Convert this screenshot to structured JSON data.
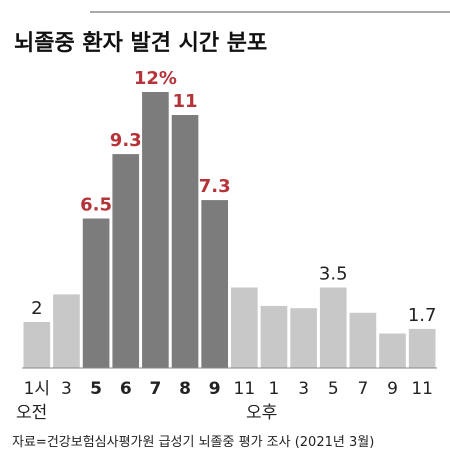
{
  "chart_data": {
    "type": "bar",
    "title": "뇌졸중 환자 발견 시간 분포",
    "categories": [
      "1시",
      "3",
      "5",
      "6",
      "7",
      "8",
      "9",
      "11",
      "1",
      "3",
      "5",
      "7",
      "9",
      "11"
    ],
    "values": [
      2,
      3.2,
      6.5,
      9.3,
      12,
      11,
      7.3,
      3.5,
      2.7,
      2.6,
      3.5,
      2.4,
      1.5,
      1.7
    ],
    "value_labels": [
      "2",
      null,
      "6.5",
      "9.3",
      "12%",
      "11",
      "7.3",
      null,
      null,
      null,
      "3.5",
      null,
      null,
      "1.7"
    ],
    "highlighted": [
      false,
      false,
      true,
      true,
      true,
      true,
      true,
      false,
      false,
      false,
      false,
      false,
      false,
      false
    ],
    "color": "#c8c8c8",
    "highlight_color": "#7c7c7c",
    "label_color": "#222222",
    "highlight_label_color": "#b5343a",
    "group_labels": [
      {
        "label": "오전",
        "index": 0
      },
      {
        "label": "오후",
        "index": 8
      }
    ],
    "ylim": [
      0,
      13
    ],
    "source": "자료=건강보험심사평가원 급성기 뇌졸중 평가 조사 (2021년 3월)"
  }
}
